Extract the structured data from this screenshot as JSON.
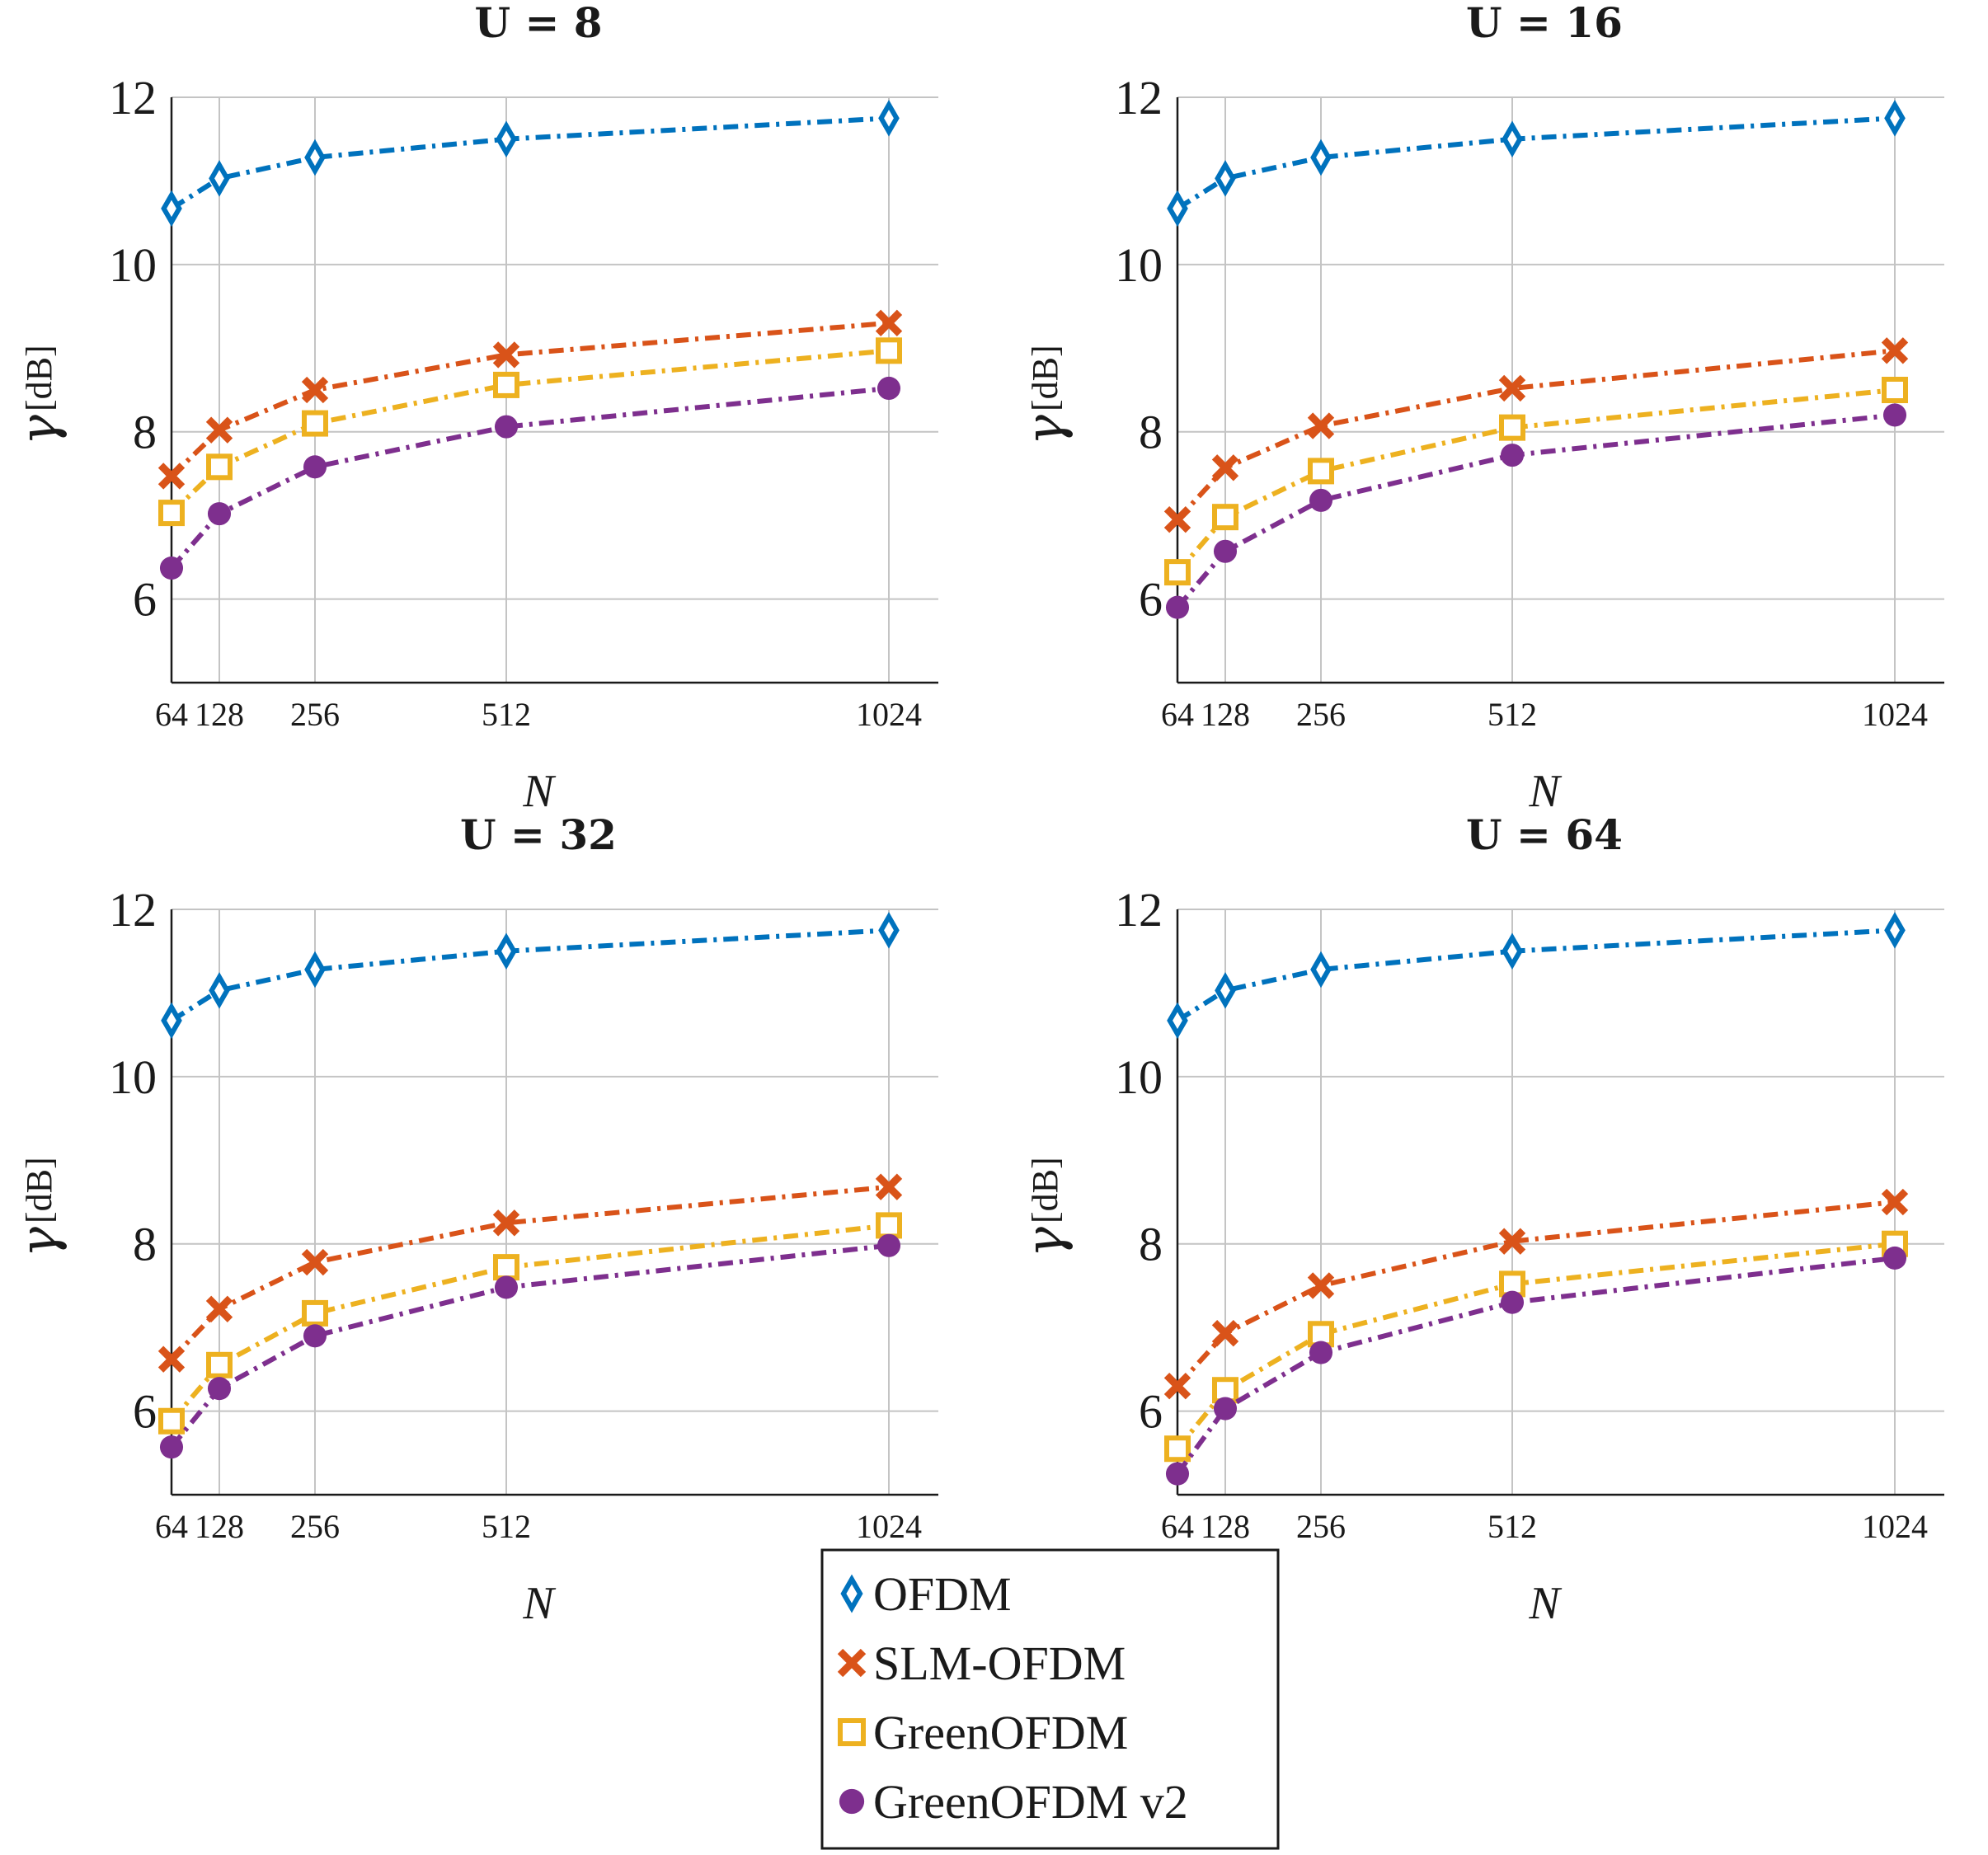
{
  "chart_data": [
    {
      "type": "line",
      "title": "U = 8",
      "xlabel": "N",
      "ylabel_symbol": "γ",
      "ylabel_unit": "[dB]",
      "x": [
        64,
        128,
        256,
        512,
        1024
      ],
      "x_tick_labels": [
        "64",
        "128",
        "256",
        "512",
        "1024"
      ],
      "ylim": [
        5,
        12
      ],
      "y_ticks": [
        6,
        8,
        10,
        12
      ],
      "grid": true,
      "series": [
        {
          "name": "OFDM",
          "values": [
            10.67,
            11.03,
            11.28,
            11.5,
            11.75
          ]
        },
        {
          "name": "SLM-OFDM",
          "values": [
            7.47,
            8.02,
            8.5,
            8.92,
            9.3
          ]
        },
        {
          "name": "GreenOFDM",
          "values": [
            7.03,
            7.58,
            8.1,
            8.56,
            8.97
          ]
        },
        {
          "name": "GreenOFDM v2",
          "values": [
            6.37,
            7.02,
            7.58,
            8.06,
            8.52
          ]
        }
      ]
    },
    {
      "type": "line",
      "title": "U = 16",
      "xlabel": "N",
      "ylabel_symbol": "γ",
      "ylabel_unit": "[dB]",
      "x": [
        64,
        128,
        256,
        512,
        1024
      ],
      "x_tick_labels": [
        "64",
        "128",
        "256",
        "512",
        "1024"
      ],
      "ylim": [
        5,
        12
      ],
      "y_ticks": [
        6,
        8,
        10,
        12
      ],
      "grid": true,
      "series": [
        {
          "name": "OFDM",
          "values": [
            10.67,
            11.03,
            11.28,
            11.5,
            11.75
          ]
        },
        {
          "name": "SLM-OFDM",
          "values": [
            6.95,
            7.57,
            8.07,
            8.52,
            8.97
          ]
        },
        {
          "name": "GreenOFDM",
          "values": [
            6.32,
            6.98,
            7.53,
            8.05,
            8.5
          ]
        },
        {
          "name": "GreenOFDM v2",
          "values": [
            5.9,
            6.57,
            7.18,
            7.72,
            8.2
          ]
        }
      ]
    },
    {
      "type": "line",
      "title": "U = 32",
      "xlabel": "N",
      "ylabel_symbol": "γ",
      "ylabel_unit": "[dB]",
      "x": [
        64,
        128,
        256,
        512,
        1024
      ],
      "x_tick_labels": [
        "64",
        "128",
        "256",
        "512",
        "1024"
      ],
      "ylim": [
        5,
        12
      ],
      "y_ticks": [
        6,
        8,
        10,
        12
      ],
      "grid": true,
      "series": [
        {
          "name": "OFDM",
          "values": [
            10.67,
            11.03,
            11.28,
            11.5,
            11.75
          ]
        },
        {
          "name": "SLM-OFDM",
          "values": [
            6.62,
            7.22,
            7.78,
            8.25,
            8.68
          ]
        },
        {
          "name": "GreenOFDM",
          "values": [
            5.88,
            6.55,
            7.17,
            7.72,
            8.22
          ]
        },
        {
          "name": "GreenOFDM v2",
          "values": [
            5.57,
            6.27,
            6.9,
            7.48,
            7.98
          ]
        }
      ]
    },
    {
      "type": "line",
      "title": "U = 64",
      "xlabel": "N",
      "ylabel_symbol": "γ",
      "ylabel_unit": "[dB]",
      "x": [
        64,
        128,
        256,
        512,
        1024
      ],
      "x_tick_labels": [
        "64",
        "128",
        "256",
        "512",
        "1024"
      ],
      "ylim": [
        5,
        12
      ],
      "y_ticks": [
        6,
        8,
        10,
        12
      ],
      "grid": true,
      "series": [
        {
          "name": "OFDM",
          "values": [
            10.67,
            11.03,
            11.28,
            11.5,
            11.75
          ]
        },
        {
          "name": "SLM-OFDM",
          "values": [
            6.3,
            6.93,
            7.5,
            8.03,
            8.5
          ]
        },
        {
          "name": "GreenOFDM",
          "values": [
            5.55,
            6.25,
            6.92,
            7.52,
            8.0
          ]
        },
        {
          "name": "GreenOFDM v2",
          "values": [
            5.25,
            6.03,
            6.7,
            7.3,
            7.83
          ]
        }
      ]
    }
  ],
  "legend": {
    "placement": "bottom-center",
    "entries": [
      {
        "label": "OFDM",
        "color": "#0072BD",
        "marker": "diamond-icon"
      },
      {
        "label": "SLM-OFDM",
        "color": "#D95319",
        "marker": "cross-icon"
      },
      {
        "label": "GreenOFDM",
        "color": "#EDB120",
        "marker": "square-icon"
      },
      {
        "label": "GreenOFDM v2",
        "color": "#7E2F8E",
        "marker": "filled-circle-icon"
      }
    ]
  }
}
